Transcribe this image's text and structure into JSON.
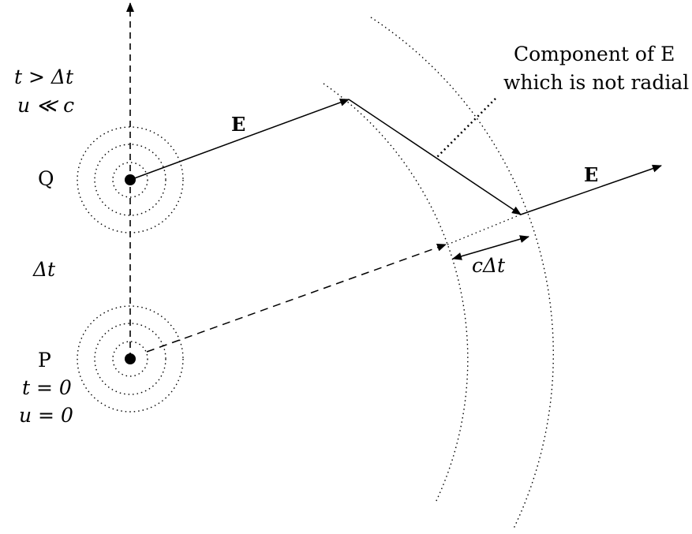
{
  "labels": {
    "moving_charge_time": "t > Δt",
    "moving_charge_speed": "u ≪ c",
    "charge_q": "Q",
    "interval": "Δt",
    "charge_p": "P",
    "initial_time": "t = 0",
    "initial_speed": "u = 0",
    "field_inner": "E",
    "field_outer": "E",
    "annotation_line1": "Component of E",
    "annotation_line2": "which is not radial",
    "shell_thickness": "cΔt"
  }
}
